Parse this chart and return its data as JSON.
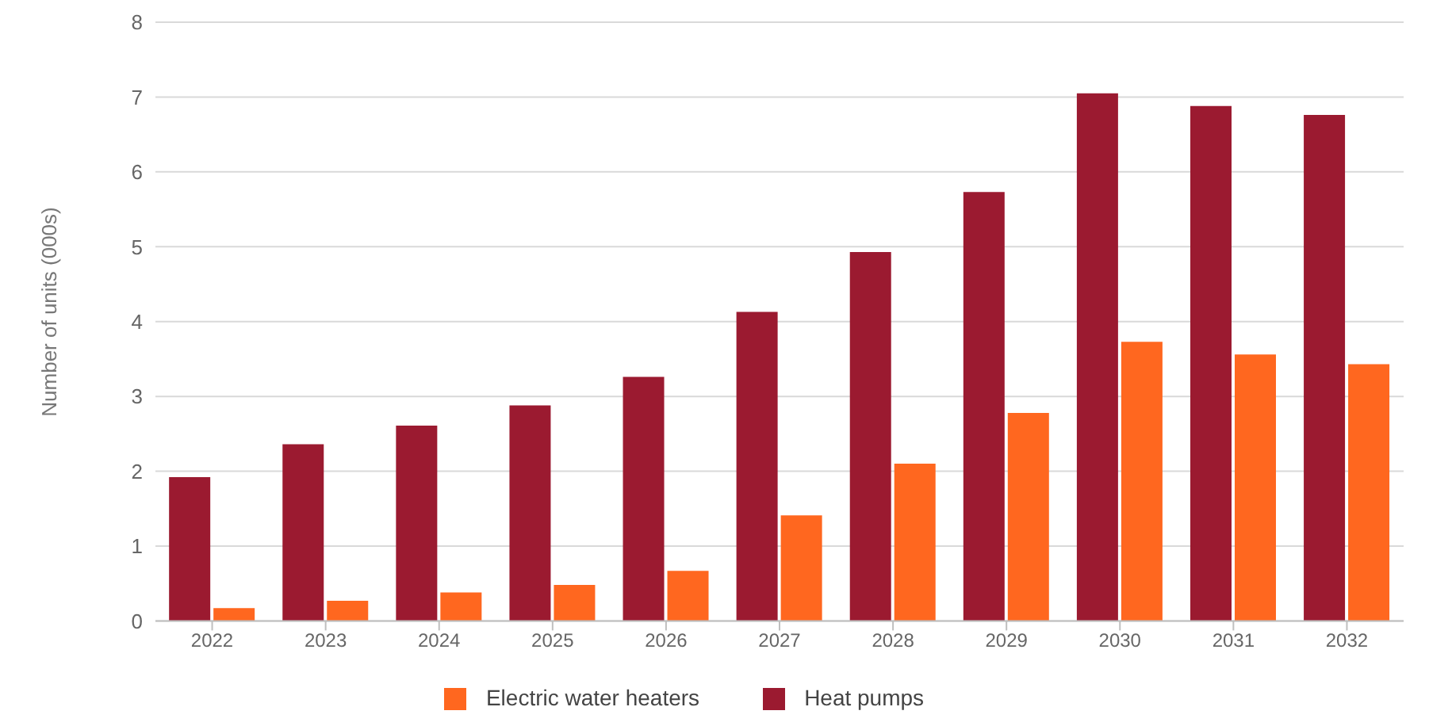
{
  "chart_data": {
    "type": "bar",
    "ylabel": "Number of units (000s)",
    "categories": [
      "2022",
      "2023",
      "2024",
      "2025",
      "2026",
      "2027",
      "2028",
      "2029",
      "2030",
      "2031",
      "2032"
    ],
    "series": [
      {
        "name": "Heat pumps",
        "color": "#9b1a30",
        "values": [
          1.92,
          2.36,
          2.61,
          2.88,
          3.26,
          4.13,
          4.93,
          5.73,
          7.05,
          6.88,
          6.76
        ]
      },
      {
        "name": "Electric water heaters",
        "color": "#ff671f",
        "values": [
          0.17,
          0.27,
          0.38,
          0.48,
          0.67,
          1.41,
          2.1,
          2.78,
          3.73,
          3.56,
          3.43
        ]
      }
    ],
    "ylim": [
      0,
      8
    ],
    "yticks": [
      0,
      1,
      2,
      3,
      4,
      5,
      6,
      7,
      8
    ],
    "grid": "y",
    "legend": "bottom"
  }
}
